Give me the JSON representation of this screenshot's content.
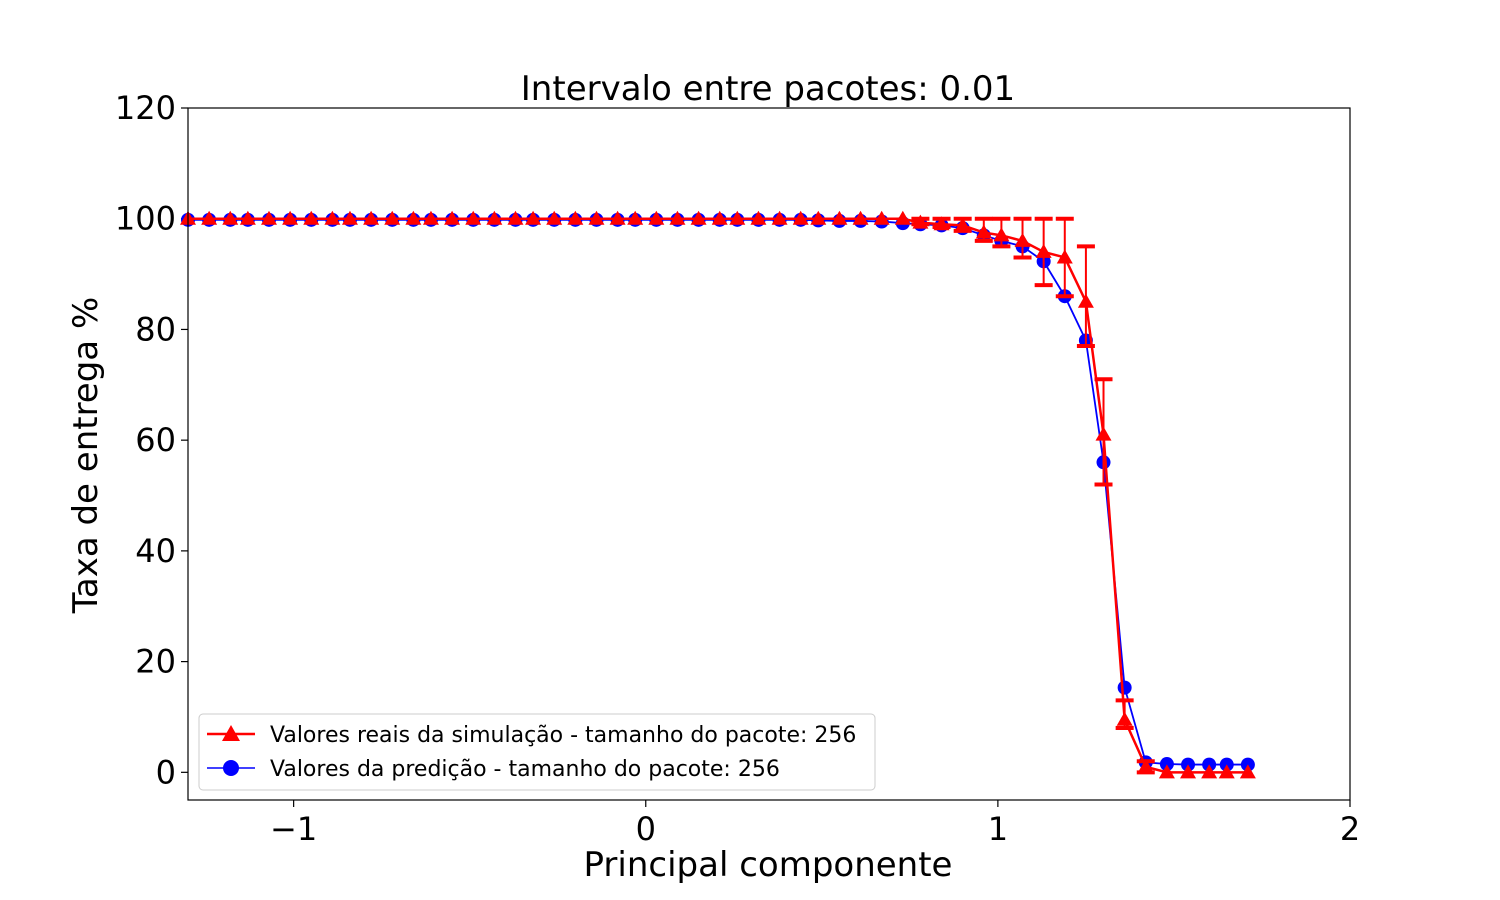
{
  "chart_data": {
    "type": "line",
    "title": "Intervalo entre pacotes: 0.01",
    "xlabel": "Principal componente",
    "ylabel": "Taxa de entrega %",
    "xlim": [
      -1.3,
      2.0
    ],
    "ylim": [
      -5,
      120
    ],
    "xticks": [
      -1,
      0,
      1,
      2
    ],
    "xtick_labels": [
      "−1",
      "0",
      "1",
      "2"
    ],
    "yticks": [
      0,
      20,
      40,
      60,
      80,
      100,
      120
    ],
    "ytick_labels": [
      "0",
      "20",
      "40",
      "60",
      "80",
      "100",
      "120"
    ],
    "grid": false,
    "legend_position": "lower-left",
    "x": [
      -1.3,
      -1.24,
      -1.18,
      -1.13,
      -1.07,
      -1.01,
      -0.95,
      -0.89,
      -0.84,
      -0.78,
      -0.72,
      -0.66,
      -0.61,
      -0.55,
      -0.49,
      -0.43,
      -0.37,
      -0.32,
      -0.26,
      -0.2,
      -0.14,
      -0.08,
      -0.03,
      0.03,
      0.09,
      0.15,
      0.21,
      0.26,
      0.32,
      0.38,
      0.44,
      0.49,
      0.55,
      0.61,
      0.67,
      0.73,
      0.78,
      0.84,
      0.9,
      0.96,
      1.01,
      1.07,
      1.13,
      1.19,
      1.25,
      1.3,
      1.36,
      1.42,
      1.48,
      1.54,
      1.6,
      1.65,
      1.71
    ],
    "series": [
      {
        "name": "Valores reais da simulação - tamanho do pacote: 256",
        "color": "#ff0000",
        "marker": "triangle",
        "values": [
          100,
          100,
          100,
          100,
          100,
          100,
          100,
          100,
          100,
          100,
          100,
          100,
          100,
          100,
          100,
          100,
          100,
          100,
          100,
          100,
          100,
          100,
          100,
          100,
          100,
          100,
          100,
          100,
          100,
          100,
          100,
          100,
          100,
          100,
          100,
          100,
          99.3,
          99.0,
          98.8,
          97.5,
          97.0,
          96.0,
          94.0,
          93.0,
          85.0,
          61.0,
          9.5,
          1.0,
          0,
          0,
          0,
          0,
          0
        ],
        "err_low": [
          0,
          0,
          0,
          0,
          0,
          0,
          0,
          0,
          0,
          0,
          0,
          0,
          0,
          0,
          0,
          0,
          0,
          0,
          0,
          0,
          0,
          0,
          0,
          0,
          0,
          0,
          0,
          0,
          0,
          0,
          0,
          0,
          0,
          0,
          0,
          0,
          0.3,
          0.5,
          1.0,
          1.5,
          2.0,
          3.0,
          6.0,
          7.0,
          8.0,
          9.0,
          1.5,
          1.0,
          0,
          0,
          0,
          0,
          0
        ],
        "err_high": [
          0,
          0,
          0,
          0,
          0,
          0,
          0,
          0,
          0,
          0,
          0,
          0,
          0,
          0,
          0,
          0,
          0,
          0,
          0,
          0,
          0,
          0,
          0,
          0,
          0,
          0,
          0,
          0,
          0,
          0,
          0,
          0,
          0,
          0,
          0,
          0,
          0.7,
          1.0,
          1.2,
          2.5,
          3.0,
          4.0,
          6.0,
          7.0,
          10.0,
          10.0,
          3.5,
          1.0,
          0,
          0,
          0,
          0,
          0
        ]
      },
      {
        "name": "Valores da predição - tamanho do pacote: 256",
        "color": "#0000ff",
        "marker": "circle",
        "values": [
          99.8,
          99.8,
          99.8,
          99.8,
          99.8,
          99.8,
          99.8,
          99.8,
          99.8,
          99.8,
          99.8,
          99.8,
          99.8,
          99.8,
          99.8,
          99.8,
          99.8,
          99.8,
          99.8,
          99.8,
          99.8,
          99.8,
          99.8,
          99.8,
          99.8,
          99.8,
          99.8,
          99.8,
          99.8,
          99.8,
          99.8,
          99.7,
          99.6,
          99.6,
          99.5,
          99.2,
          99.0,
          98.8,
          98.3,
          97.0,
          96.0,
          95.0,
          92.3,
          86.0,
          78.0,
          56.0,
          15.3,
          1.8,
          1.5,
          1.4,
          1.4,
          1.4,
          1.4
        ]
      }
    ]
  }
}
